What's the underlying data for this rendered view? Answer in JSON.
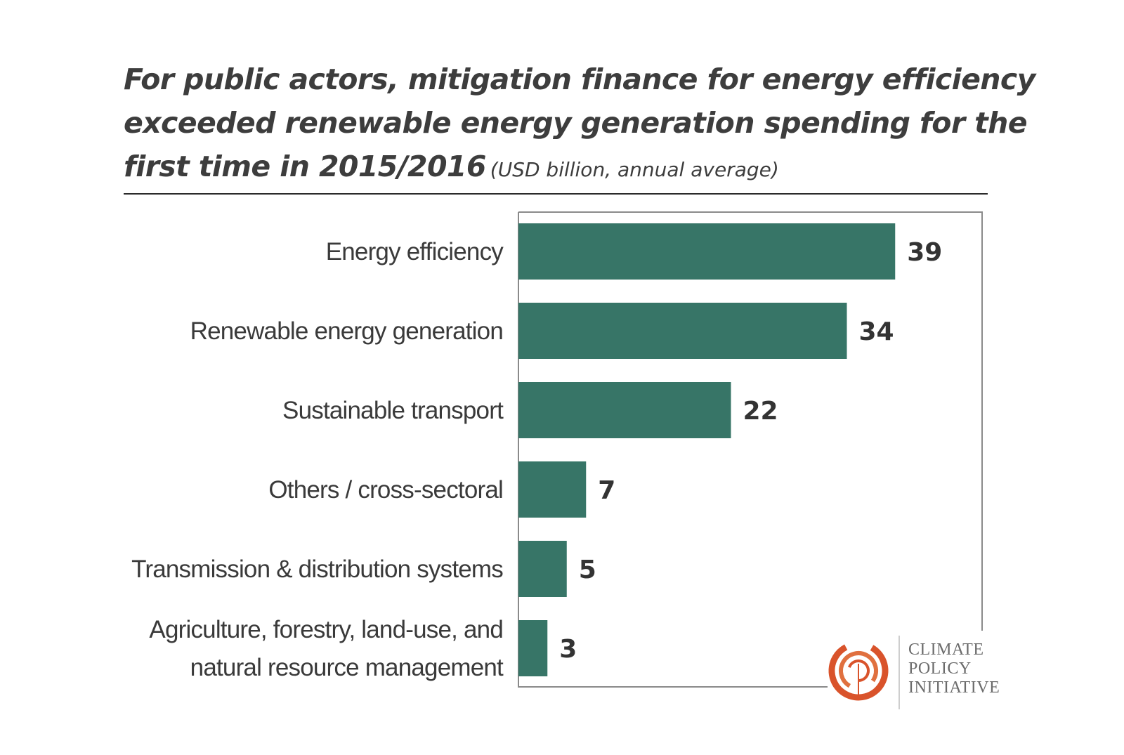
{
  "title": {
    "lines": [
      "For public actors, mitigation finance for energy efficiency",
      "exceeded renewable energy generation spending for the",
      "first time in 2015/2016"
    ],
    "subtitle": "(USD billion, annual average)"
  },
  "chart_data": {
    "type": "bar",
    "orientation": "horizontal",
    "categories": [
      [
        "Energy efficiency"
      ],
      [
        "Renewable energy generation"
      ],
      [
        "Sustainable transport"
      ],
      [
        "Others / cross-sectoral"
      ],
      [
        "Transmission & distribution systems"
      ],
      [
        "Agriculture, forestry, land-use, and",
        "natural resource management"
      ]
    ],
    "values": [
      39,
      34,
      22,
      7,
      5,
      3
    ],
    "value_labels": [
      "39",
      "34",
      "22",
      "7",
      "5",
      "3"
    ],
    "xlim": [
      0,
      48
    ],
    "grid": false,
    "bar_color": "#377567"
  },
  "logo": {
    "lines": [
      "CLIMATE",
      "POLICY",
      "INITIATIVE"
    ],
    "color": "#d9532b"
  }
}
